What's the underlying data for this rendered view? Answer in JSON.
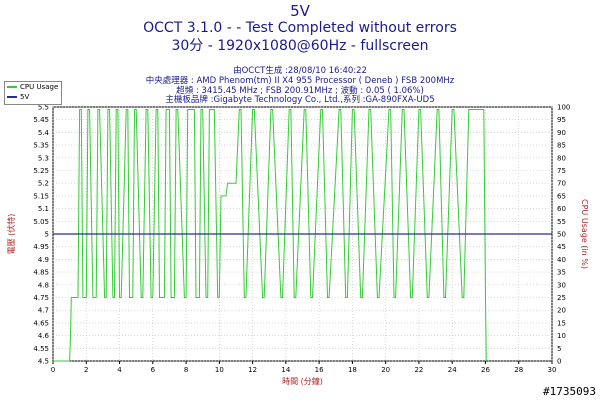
{
  "header": {
    "title1": "5V",
    "title2": "OCCT 3.1.0 -  - Test Completed without errors",
    "title3": "30分 - 1920x1080@60Hz - fullscreen",
    "info1": "由OCCT生成 :28/08/10 16:40:22",
    "info2": "中央處理器 : AMD Phenom(tm) II X4 955 Processor ( Deneb ) FSB 200MHz",
    "info3": "超頻 : 3415.45 MHz ; FSB 200.91MHz ; 波動 : 0.05 ( 1.06%)",
    "info4": "主機板品牌 :Gigabyte Technology Co., Ltd.,系列 :GA-890FXA-UD5"
  },
  "watermark": "#1735093",
  "colors": {
    "cpu_usage": "#33cc33",
    "voltage": "#2b2b9e",
    "text": "#1a1a8c",
    "grid": "#c0c0c0"
  },
  "chart_data": {
    "type": "line",
    "xlabel": "時間 (分鐘)",
    "ylabel_left": "電壓 (伏特)",
    "ylabel_right": "CPU Usage (in %)",
    "xlim": [
      0,
      30
    ],
    "ylim_left": [
      4.5,
      5.5
    ],
    "ylim_right": [
      0,
      100
    ],
    "x_ticks": [
      0,
      2,
      4,
      6,
      8,
      10,
      12,
      14,
      16,
      18,
      20,
      22,
      24,
      26,
      28,
      30
    ],
    "y_left_ticks": [
      4.5,
      4.55,
      4.6,
      4.65,
      4.7,
      4.75,
      4.8,
      4.85,
      4.9,
      4.95,
      5,
      5.05,
      5.1,
      5.15,
      5.2,
      5.25,
      5.3,
      5.35,
      5.4,
      5.45,
      5.5
    ],
    "y_right_ticks": [
      0,
      5,
      10,
      15,
      20,
      25,
      30,
      35,
      40,
      45,
      50,
      55,
      60,
      65,
      70,
      75,
      80,
      85,
      90,
      95,
      100
    ],
    "grid": true,
    "legend_placement": "top-left",
    "series": [
      {
        "name": "CPU Usage",
        "axis": "right",
        "x": [
          0,
          1.0,
          1.05,
          1.1,
          1.2,
          1.3,
          1.5,
          1.6,
          1.7,
          1.8,
          2.0,
          2.1,
          2.2,
          2.4,
          2.6,
          2.7,
          2.8,
          3.1,
          3.2,
          3.3,
          3.4,
          3.6,
          3.7,
          3.8,
          3.9,
          4.0,
          4.1,
          4.4,
          4.5,
          4.6,
          4.8,
          4.9,
          5.0,
          5.3,
          5.4,
          5.6,
          5.7,
          5.9,
          6.0,
          6.2,
          6.3,
          6.4,
          6.7,
          6.8,
          7.0,
          7.1,
          7.3,
          7.4,
          7.5,
          7.9,
          8.0,
          8.1,
          8.5,
          8.6,
          8.8,
          8.9,
          9.0,
          9.2,
          9.3,
          9.4,
          9.6,
          9.7,
          9.9,
          10.0,
          10.1,
          10.2,
          10.3,
          10.4,
          10.5,
          10.6,
          11.0,
          11.2,
          11.3,
          11.5,
          11.6,
          12.0,
          12.1,
          12.6,
          12.7,
          13.1,
          13.2,
          13.7,
          13.8,
          14.2,
          14.3,
          14.5,
          14.6,
          15.1,
          15.2,
          15.5,
          15.6,
          16.1,
          16.2,
          16.5,
          16.6,
          17.2,
          17.3,
          17.6,
          17.7,
          18.0,
          18.1,
          18.5,
          18.6,
          19.0,
          19.1,
          19.5,
          19.6,
          20.2,
          20.3,
          20.5,
          20.6,
          21.0,
          21.1,
          21.5,
          21.6,
          22.0,
          22.1,
          22.5,
          22.6,
          23.1,
          23.2,
          23.5,
          23.6,
          24.0,
          24.1,
          24.6,
          24.7,
          25.0,
          25.1,
          25.9,
          26.0,
          26.05
        ],
        "values": [
          0,
          0,
          10,
          25,
          25,
          25,
          25,
          99,
          99,
          25,
          25,
          99,
          99,
          25,
          25,
          99,
          99,
          25,
          25,
          99,
          99,
          25,
          25,
          99,
          99,
          25,
          25,
          99,
          99,
          25,
          25,
          99,
          99,
          25,
          25,
          99,
          99,
          25,
          25,
          99,
          99,
          25,
          25,
          99,
          99,
          25,
          25,
          99,
          99,
          25,
          25,
          99,
          99,
          25,
          25,
          99,
          99,
          25,
          25,
          99,
          99,
          99,
          25,
          25,
          65,
          65,
          65,
          65,
          70,
          70,
          70,
          99,
          99,
          25,
          25,
          99,
          99,
          25,
          25,
          99,
          99,
          25,
          25,
          99,
          99,
          25,
          25,
          99,
          99,
          25,
          25,
          99,
          99,
          25,
          25,
          99,
          99,
          25,
          25,
          99,
          99,
          25,
          25,
          99,
          99,
          25,
          25,
          99,
          99,
          25,
          25,
          99,
          99,
          25,
          25,
          99,
          99,
          25,
          25,
          99,
          99,
          25,
          25,
          99,
          99,
          25,
          25,
          99,
          99,
          99,
          25,
          0
        ]
      },
      {
        "name": "5V",
        "axis": "left",
        "x": [
          0,
          30
        ],
        "values": [
          5.0,
          5.0
        ]
      }
    ]
  }
}
